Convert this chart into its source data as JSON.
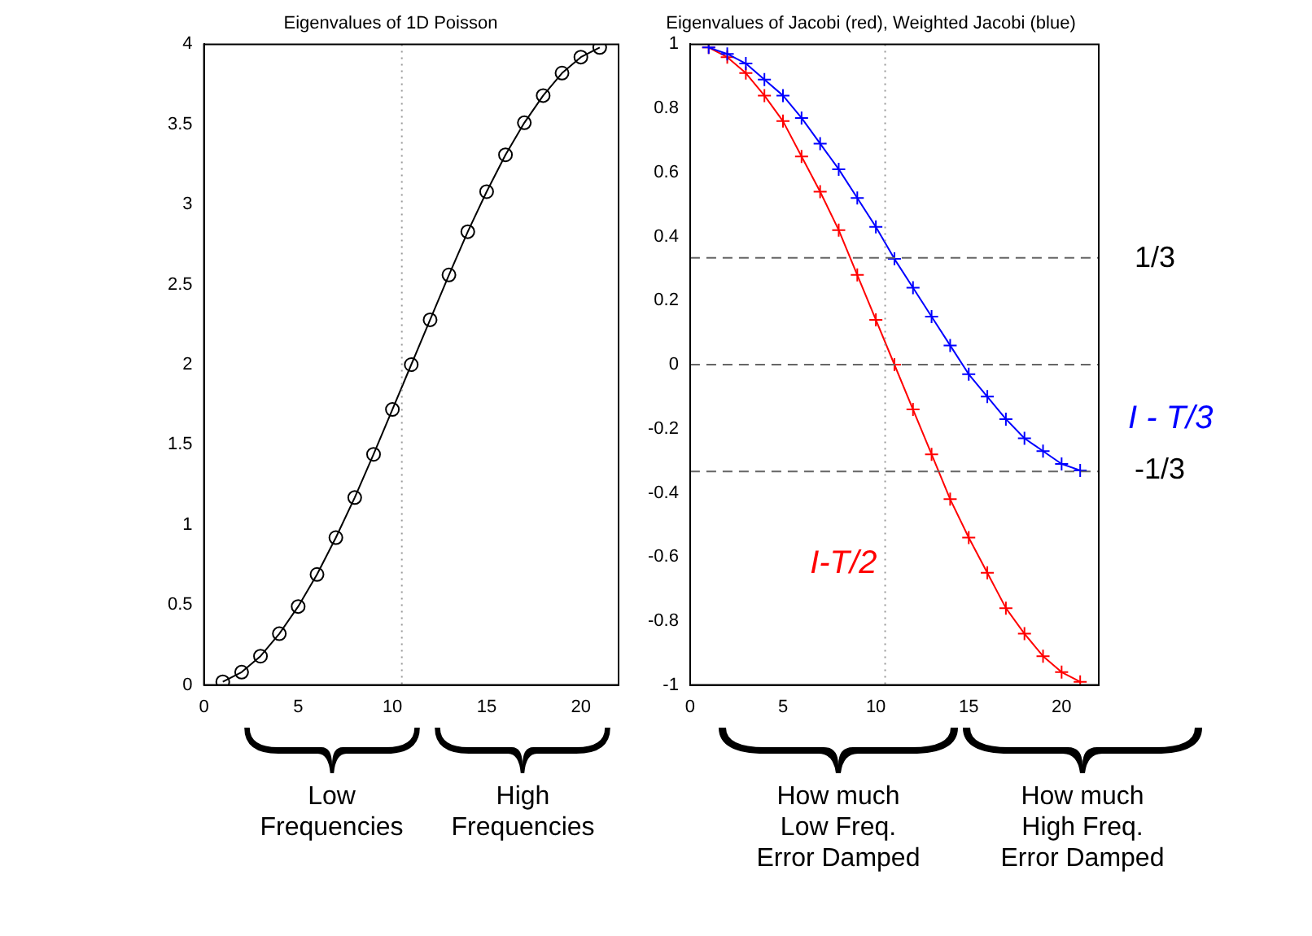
{
  "chart_data": [
    {
      "type": "line",
      "title": "Eigenvalues of 1D Poisson",
      "x": [
        1,
        2,
        3,
        4,
        5,
        6,
        7,
        8,
        9,
        10,
        11,
        12,
        13,
        14,
        15,
        16,
        17,
        18,
        19,
        20,
        21
      ],
      "series": [
        {
          "color": "#000000",
          "marker": "circle",
          "values": [
            0.02,
            0.08,
            0.18,
            0.32,
            0.49,
            0.69,
            0.92,
            1.17,
            1.44,
            1.72,
            2.0,
            2.28,
            2.56,
            2.83,
            3.08,
            3.31,
            3.51,
            3.68,
            3.82,
            3.92,
            3.98
          ]
        }
      ],
      "xlim": [
        0,
        22
      ],
      "xticks": [
        0,
        5,
        10,
        15,
        20
      ],
      "ylim": [
        0,
        4
      ],
      "yticks": [
        0,
        0.5,
        1,
        1.5,
        2,
        2.5,
        3,
        3.5,
        4
      ],
      "ref_lines": [
        {
          "axis": "x",
          "value": 10.5,
          "label": null,
          "color": "#999999",
          "line_style": "dotted"
        }
      ],
      "annotations": [
        "Low Frequencies",
        "High Frequencies"
      ],
      "grid": false,
      "legend": false,
      "line_style": "solid"
    },
    {
      "type": "line",
      "title": "Eigenvalues of Jacobi (red), Weighted Jacobi (blue)",
      "x": [
        1,
        2,
        3,
        4,
        5,
        6,
        7,
        8,
        9,
        10,
        11,
        12,
        13,
        14,
        15,
        16,
        17,
        18,
        19,
        20,
        21
      ],
      "series": [
        {
          "name": "I - T/3",
          "color": "#0000ff",
          "marker": "cross",
          "values": [
            0.99,
            0.97,
            0.94,
            0.89,
            0.84,
            0.77,
            0.69,
            0.61,
            0.52,
            0.43,
            0.33,
            0.24,
            0.15,
            0.06,
            -0.03,
            -0.1,
            -0.17,
            -0.23,
            -0.27,
            -0.31,
            -0.33
          ]
        },
        {
          "name": "I-T/2",
          "color": "#ff0000",
          "marker": "cross",
          "values": [
            0.99,
            0.96,
            0.91,
            0.84,
            0.76,
            0.65,
            0.54,
            0.42,
            0.28,
            0.14,
            0.0,
            -0.14,
            -0.28,
            -0.42,
            -0.54,
            -0.65,
            -0.76,
            -0.84,
            -0.91,
            -0.96,
            -0.99
          ]
        }
      ],
      "xlim": [
        0,
        22
      ],
      "xticks": [
        0,
        5,
        10,
        15,
        20
      ],
      "ylim": [
        -1,
        1
      ],
      "yticks": [
        -1,
        -0.8,
        -0.6,
        -0.4,
        -0.2,
        0,
        0.2,
        0.4,
        0.6,
        0.8,
        1
      ],
      "ref_lines": [
        {
          "axis": "x",
          "value": 10.5,
          "label": null,
          "color": "#999999",
          "line_style": "dotted"
        },
        {
          "axis": "y",
          "value": 0.3333333333333333,
          "label": null,
          "color": "#666666",
          "line_style": "dashed"
        },
        {
          "axis": "y",
          "value": 0,
          "label": null,
          "color": "#666666",
          "line_style": "dashed"
        },
        {
          "axis": "y",
          "value": -0.3333333333333333,
          "label": null,
          "color": "#666666",
          "line_style": "dashed"
        }
      ],
      "annotations": [
        "How much Low Freq. Error Damped",
        "How much High Freq. Error Damped",
        "1/3",
        "-1/3"
      ],
      "grid": false,
      "legend": false,
      "line_style": "solid"
    }
  ]
}
